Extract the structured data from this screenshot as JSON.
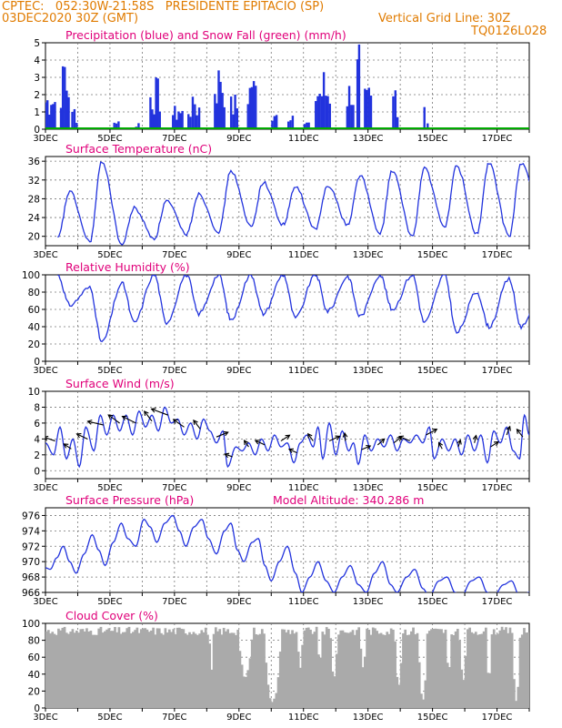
{
  "header": {
    "line1_left": "CPTEC:   052:30W-21:58S   PRESIDENTE EPITACIO (SP)",
    "line2_left": "03DEC2020 30Z (GMT)",
    "line2_right": "Vertical Grid Line: 30Z",
    "line3_right": "TQ0126L028"
  },
  "colors": {
    "header_text": "#e07b00",
    "title_text": "#e0007a",
    "line": "#2233dd",
    "precip": "#2233dd",
    "snow": "#00aa00",
    "cloud": "#aaaaaa"
  },
  "chart_data": [
    {
      "id": "precip",
      "type": "bar",
      "title": "Precipitation (blue) and Snow Fall (green) (mm/h)",
      "x_ticks": [
        "3DEC",
        "5DEC",
        "7DEC",
        "9DEC",
        "11DEC",
        "13DEC",
        "15DEC",
        "17DEC"
      ],
      "ylim": [
        0,
        5
      ],
      "y_ticks": [
        0,
        1,
        2,
        3,
        4,
        5
      ],
      "grid": true,
      "bursts": [
        {
          "day": 3.15,
          "width": 0.35,
          "peak": 2.5
        },
        {
          "day": 3.6,
          "width": 0.3,
          "peak": 4.0
        },
        {
          "day": 3.9,
          "width": 0.2,
          "peak": 1.2
        },
        {
          "day": 5.2,
          "width": 0.2,
          "peak": 0.6
        },
        {
          "day": 5.85,
          "width": 0.15,
          "peak": 0.4
        },
        {
          "day": 6.4,
          "width": 0.35,
          "peak": 3.0
        },
        {
          "day": 7.1,
          "width": 0.35,
          "peak": 1.4
        },
        {
          "day": 7.6,
          "width": 0.4,
          "peak": 1.9
        },
        {
          "day": 8.4,
          "width": 0.35,
          "peak": 4.1
        },
        {
          "day": 8.85,
          "width": 0.25,
          "peak": 2.0
        },
        {
          "day": 9.4,
          "width": 0.3,
          "peak": 3.4
        },
        {
          "day": 10.1,
          "width": 0.2,
          "peak": 1.4
        },
        {
          "day": 10.6,
          "width": 0.2,
          "peak": 1.4
        },
        {
          "day": 11.1,
          "width": 0.2,
          "peak": 0.4
        },
        {
          "day": 11.6,
          "width": 0.5,
          "peak": 3.3
        },
        {
          "day": 12.45,
          "width": 0.25,
          "peak": 3.1
        },
        {
          "day": 12.7,
          "width": 0.1,
          "peak": 4.9
        },
        {
          "day": 13.0,
          "width": 0.25,
          "peak": 2.4
        },
        {
          "day": 13.85,
          "width": 0.2,
          "peak": 2.6
        },
        {
          "day": 14.75,
          "width": 0.05,
          "peak": 2.0
        },
        {
          "day": 14.85,
          "width": 0.05,
          "peak": 0.5
        }
      ]
    },
    {
      "id": "temperature",
      "type": "line",
      "title": "Surface Temperature (nC)",
      "x_ticks": [
        "3DEC",
        "5DEC",
        "7DEC",
        "9DEC",
        "11DEC",
        "13DEC",
        "15DEC",
        "17DEC"
      ],
      "ylim": [
        18,
        37
      ],
      "y_ticks": [
        20,
        24,
        28,
        32,
        36
      ],
      "grid": true,
      "daily_max": [
        29.5,
        36,
        26,
        27.5,
        29,
        34,
        31.5,
        30.5,
        31,
        33,
        34,
        34.5,
        35,
        35.5,
        35.5,
        35.5
      ],
      "daily_min": [
        19.5,
        18.8,
        18.2,
        19.5,
        20.5,
        21.0,
        22.0,
        22.5,
        21.5,
        22.5,
        20.5,
        20.0,
        22.0,
        20.5,
        20.0,
        25.0
      ],
      "min_hour": 9.0,
      "max_hour": 18.0
    },
    {
      "id": "humidity",
      "type": "line",
      "title": "Relative Humidity (%)",
      "x_ticks": [
        "3DEC",
        "5DEC",
        "7DEC",
        "9DEC",
        "11DEC",
        "13DEC",
        "15DEC",
        "17DEC"
      ],
      "ylim": [
        0,
        100
      ],
      "y_ticks": [
        0,
        20,
        40,
        60,
        80,
        100
      ],
      "grid": true,
      "daily_max": [
        100,
        85,
        90,
        100,
        100,
        100,
        100,
        100,
        100,
        98,
        100,
        100,
        100,
        80,
        95,
        85
      ],
      "daily_min": [
        65,
        22,
        45,
        45,
        55,
        48,
        55,
        50,
        58,
        52,
        60,
        45,
        33,
        40,
        40,
        40
      ],
      "min_hour": 18.0,
      "max_hour": 9.0
    },
    {
      "id": "wind",
      "type": "line",
      "title": "Surface Wind (m/s)",
      "x_ticks": [
        "3DEC",
        "5DEC",
        "7DEC",
        "9DEC",
        "11DEC",
        "13DEC",
        "15DEC",
        "17DEC"
      ],
      "ylim": [
        -1,
        10
      ],
      "y_ticks": [
        0,
        2,
        4,
        6,
        8,
        10
      ],
      "grid": true,
      "speed_points": [
        [
          3.0,
          3.5
        ],
        [
          3.25,
          2.0
        ],
        [
          3.45,
          5.5
        ],
        [
          3.65,
          1.5
        ],
        [
          3.85,
          4.0
        ],
        [
          4.05,
          0.5
        ],
        [
          4.25,
          5.5
        ],
        [
          4.5,
          2.5
        ],
        [
          4.7,
          7.0
        ],
        [
          4.9,
          4.5
        ],
        [
          5.1,
          7.0
        ],
        [
          5.3,
          5.0
        ],
        [
          5.5,
          7.0
        ],
        [
          5.7,
          4.5
        ],
        [
          5.9,
          7.5
        ],
        [
          6.1,
          5.5
        ],
        [
          6.3,
          7.0
        ],
        [
          6.5,
          5.0
        ],
        [
          6.7,
          8.0
        ],
        [
          6.9,
          6.0
        ],
        [
          7.1,
          6.5
        ],
        [
          7.3,
          4.5
        ],
        [
          7.5,
          6.0
        ],
        [
          7.7,
          4.0
        ],
        [
          7.9,
          6.5
        ],
        [
          8.1,
          5.0
        ],
        [
          8.3,
          3.5
        ],
        [
          8.5,
          5.0
        ],
        [
          8.65,
          0.5
        ],
        [
          8.9,
          3.0
        ],
        [
          9.1,
          2.5
        ],
        [
          9.3,
          3.5
        ],
        [
          9.5,
          2.0
        ],
        [
          9.7,
          4.0
        ],
        [
          9.9,
          2.5
        ],
        [
          10.1,
          4.5
        ],
        [
          10.3,
          3.0
        ],
        [
          10.5,
          3.5
        ],
        [
          10.7,
          1.0
        ],
        [
          10.9,
          3.5
        ],
        [
          11.1,
          4.5
        ],
        [
          11.3,
          3.0
        ],
        [
          11.45,
          5.5
        ],
        [
          11.6,
          1.5
        ],
        [
          11.8,
          6.0
        ],
        [
          12.0,
          2.0
        ],
        [
          12.2,
          5.0
        ],
        [
          12.4,
          2.5
        ],
        [
          12.55,
          3.5
        ],
        [
          12.7,
          0.8
        ],
        [
          12.9,
          4.5
        ],
        [
          13.1,
          2.5
        ],
        [
          13.3,
          4.0
        ],
        [
          13.5,
          3.0
        ],
        [
          13.7,
          4.5
        ],
        [
          13.9,
          2.5
        ],
        [
          14.1,
          4.0
        ],
        [
          14.3,
          3.5
        ],
        [
          14.5,
          4.5
        ],
        [
          14.7,
          3.5
        ],
        [
          14.9,
          5.5
        ],
        [
          15.05,
          1.5
        ],
        [
          15.3,
          4.0
        ],
        [
          15.5,
          2.5
        ],
        [
          15.7,
          4.0
        ],
        [
          15.9,
          2.0
        ],
        [
          16.1,
          4.5
        ],
        [
          16.3,
          2.5
        ],
        [
          16.5,
          4.5
        ],
        [
          16.7,
          1.0
        ],
        [
          16.9,
          5.0
        ],
        [
          17.1,
          3.5
        ],
        [
          17.3,
          5.5
        ],
        [
          17.5,
          2.5
        ],
        [
          17.7,
          1.5
        ],
        [
          17.85,
          7.0
        ],
        [
          18.0,
          4.5
        ]
      ]
    },
    {
      "id": "pressure",
      "type": "line",
      "title": "Surface Pressure (hPa)",
      "annotation": "Model Altitude: 340.286 m",
      "x_ticks": [
        "3DEC",
        "5DEC",
        "7DEC",
        "9DEC",
        "11DEC",
        "13DEC",
        "15DEC",
        "17DEC"
      ],
      "ylim": [
        966,
        977
      ],
      "y_ticks": [
        966,
        968,
        970,
        972,
        974,
        976
      ],
      "grid": true,
      "points": [
        [
          3.0,
          969.2
        ],
        [
          3.15,
          969.0
        ],
        [
          3.35,
          970.5
        ],
        [
          3.55,
          972.0
        ],
        [
          3.75,
          970.0
        ],
        [
          3.95,
          968.5
        ],
        [
          4.2,
          971.0
        ],
        [
          4.45,
          973.5
        ],
        [
          4.65,
          971.5
        ],
        [
          4.85,
          969.5
        ],
        [
          5.1,
          972.5
        ],
        [
          5.35,
          975.0
        ],
        [
          5.55,
          973.0
        ],
        [
          5.8,
          972.0
        ],
        [
          6.05,
          975.5
        ],
        [
          6.25,
          974.5
        ],
        [
          6.45,
          972.5
        ],
        [
          6.7,
          975.0
        ],
        [
          6.95,
          976.0
        ],
        [
          7.15,
          974.0
        ],
        [
          7.35,
          972.0
        ],
        [
          7.6,
          974.5
        ],
        [
          7.85,
          975.5
        ],
        [
          8.05,
          973.0
        ],
        [
          8.3,
          971.0
        ],
        [
          8.55,
          974.0
        ],
        [
          8.75,
          975.0
        ],
        [
          8.95,
          971.5
        ],
        [
          9.15,
          970.0
        ],
        [
          9.4,
          972.5
        ],
        [
          9.6,
          973.0
        ],
        [
          9.8,
          969.5
        ],
        [
          10.0,
          967.5
        ],
        [
          10.25,
          970.0
        ],
        [
          10.5,
          972.0
        ],
        [
          10.75,
          968.5
        ],
        [
          10.95,
          966.0
        ],
        [
          11.2,
          968.0
        ],
        [
          11.45,
          970.0
        ],
        [
          11.7,
          967.5
        ],
        [
          11.95,
          966.0
        ],
        [
          12.2,
          968.0
        ],
        [
          12.45,
          969.5
        ],
        [
          12.7,
          967.0
        ],
        [
          12.95,
          966.0
        ],
        [
          13.2,
          968.5
        ],
        [
          13.45,
          970.0
        ],
        [
          13.7,
          967.0
        ],
        [
          13.9,
          966.0
        ],
        [
          14.2,
          968.0
        ],
        [
          14.45,
          969.0
        ],
        [
          14.7,
          966.5
        ],
        [
          14.9,
          965.5
        ],
        [
          15.2,
          967.5
        ],
        [
          15.45,
          968.0
        ],
        [
          15.7,
          966.0
        ],
        [
          15.9,
          965.5
        ],
        [
          16.2,
          967.5
        ],
        [
          16.45,
          968.0
        ],
        [
          16.7,
          966.0
        ],
        [
          16.9,
          965.5
        ],
        [
          17.2,
          967.0
        ],
        [
          17.45,
          967.5
        ],
        [
          17.7,
          965.5
        ],
        [
          18.0,
          966.0
        ]
      ]
    },
    {
      "id": "cloud",
      "type": "bar",
      "title": "Cloud Cover (%)",
      "x_ticks": [
        "3DEC",
        "5DEC",
        "7DEC",
        "9DEC",
        "11DEC",
        "13DEC",
        "15DEC",
        "17DEC"
      ],
      "ylim": [
        0,
        100
      ],
      "y_ticks": [
        0,
        20,
        40,
        60,
        80,
        100
      ],
      "grid": true,
      "gaps": [
        {
          "day": 8.15,
          "width": 0.15,
          "low": 38
        },
        {
          "day": 9.2,
          "width": 0.45,
          "low": 30
        },
        {
          "day": 10.05,
          "width": 0.55,
          "low": 2
        },
        {
          "day": 10.9,
          "width": 0.2,
          "low": 45
        },
        {
          "day": 11.5,
          "width": 0.15,
          "low": 50
        },
        {
          "day": 11.95,
          "width": 0.25,
          "low": 35
        },
        {
          "day": 12.85,
          "width": 0.2,
          "low": 45
        },
        {
          "day": 13.95,
          "width": 0.25,
          "low": 25
        },
        {
          "day": 14.7,
          "width": 0.3,
          "low": 5
        },
        {
          "day": 15.5,
          "width": 0.2,
          "low": 40
        },
        {
          "day": 15.95,
          "width": 0.25,
          "low": 30
        },
        {
          "day": 16.75,
          "width": 0.15,
          "low": 30
        },
        {
          "day": 17.6,
          "width": 0.25,
          "low": 5
        }
      ]
    }
  ]
}
